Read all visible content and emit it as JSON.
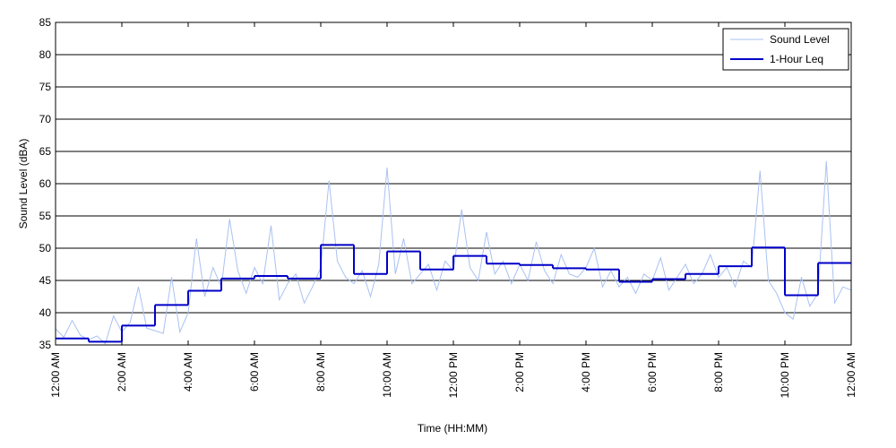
{
  "chart_data": {
    "type": "line",
    "xlabel": "Time (HH:MM)",
    "ylabel": "Sound Level (dBA)",
    "xlim": [
      0,
      24
    ],
    "ylim": [
      35,
      85
    ],
    "yticks": [
      35,
      40,
      45,
      50,
      55,
      60,
      65,
      70,
      75,
      80,
      85
    ],
    "xticks": [
      {
        "value": 0,
        "label": "12:00 AM"
      },
      {
        "value": 2,
        "label": "2:00 AM"
      },
      {
        "value": 4,
        "label": "4:00 AM"
      },
      {
        "value": 6,
        "label": "6:00 AM"
      },
      {
        "value": 8,
        "label": "8:00 AM"
      },
      {
        "value": 10,
        "label": "10:00 AM"
      },
      {
        "value": 12,
        "label": "12:00 PM"
      },
      {
        "value": 14,
        "label": "2:00 PM"
      },
      {
        "value": 16,
        "label": "4:00 PM"
      },
      {
        "value": 18,
        "label": "6:00 PM"
      },
      {
        "value": 20,
        "label": "8:00 PM"
      },
      {
        "value": 22,
        "label": "10:00 PM"
      },
      {
        "value": 24,
        "label": "12:00 AM"
      }
    ],
    "grid": true,
    "legend": "upper right",
    "series": [
      {
        "name": "Sound Level",
        "color": "#a9c1f2",
        "style": "line",
        "x": [
          0,
          0.25,
          0.5,
          0.75,
          1,
          1.25,
          1.5,
          1.75,
          2,
          2.25,
          2.5,
          2.75,
          3,
          3.25,
          3.5,
          3.75,
          4,
          4.25,
          4.5,
          4.75,
          5,
          5.25,
          5.5,
          5.75,
          6,
          6.25,
          6.5,
          6.75,
          7,
          7.25,
          7.5,
          7.75,
          8,
          8.25,
          8.5,
          8.75,
          9,
          9.25,
          9.5,
          9.75,
          10,
          10.25,
          10.5,
          10.75,
          11,
          11.25,
          11.5,
          11.75,
          12,
          12.25,
          12.5,
          12.75,
          13,
          13.25,
          13.5,
          13.75,
          14,
          14.25,
          14.5,
          14.75,
          15,
          15.25,
          15.5,
          15.75,
          16,
          16.25,
          16.5,
          16.75,
          17,
          17.25,
          17.5,
          17.75,
          18,
          18.25,
          18.5,
          18.75,
          19,
          19.25,
          19.5,
          19.75,
          20,
          20.25,
          20.5,
          20.75,
          21,
          21.25,
          21.5,
          21.75,
          22,
          22.25,
          22.5,
          22.75,
          23,
          23.25,
          23.5,
          23.75,
          24
        ],
        "values": [
          37.5,
          36.2,
          38.8,
          36.5,
          35.8,
          36.4,
          35.2,
          39.5,
          37.0,
          38.5,
          44.0,
          37.6,
          37.2,
          36.8,
          45.5,
          37.0,
          40.0,
          51.5,
          42.5,
          47.0,
          44.0,
          54.5,
          46.5,
          43.0,
          47.0,
          44.5,
          53.5,
          42.0,
          44.5,
          46.0,
          41.5,
          44.0,
          47.0,
          60.5,
          48.0,
          45.5,
          44.5,
          46.5,
          42.5,
          47.5,
          62.5,
          46.0,
          51.5,
          44.5,
          46.0,
          47.5,
          43.5,
          48.0,
          46.5,
          56.0,
          47.0,
          45.0,
          52.5,
          46.0,
          48.0,
          44.5,
          47.5,
          45.0,
          51.0,
          46.5,
          44.5,
          49.0,
          46.0,
          45.5,
          47.0,
          50.0,
          44.0,
          46.5,
          44.0,
          45.5,
          43.0,
          46.0,
          45.0,
          48.5,
          43.5,
          45.5,
          47.5,
          44.5,
          46.0,
          49.0,
          45.5,
          47.0,
          44.0,
          48.0,
          47.0,
          62.0,
          45.0,
          43.0,
          40.0,
          39.0,
          45.5,
          41.0,
          43.0,
          63.5,
          41.5,
          44.0,
          43.5
        ]
      },
      {
        "name": "1-Hour Leq",
        "color": "#0000c8",
        "style": "step",
        "x": [
          0,
          1,
          2,
          3,
          4,
          5,
          6,
          7,
          8,
          9,
          10,
          11,
          12,
          13,
          14,
          15,
          16,
          17,
          18,
          19,
          20,
          21,
          22,
          23
        ],
        "values": [
          36.0,
          35.5,
          38.0,
          41.2,
          43.4,
          45.3,
          45.7,
          45.3,
          50.5,
          46.0,
          49.5,
          46.7,
          48.8,
          47.6,
          47.4,
          46.9,
          46.7,
          44.8,
          45.2,
          46.0,
          47.2,
          50.1,
          42.7,
          47.7
        ]
      }
    ]
  }
}
